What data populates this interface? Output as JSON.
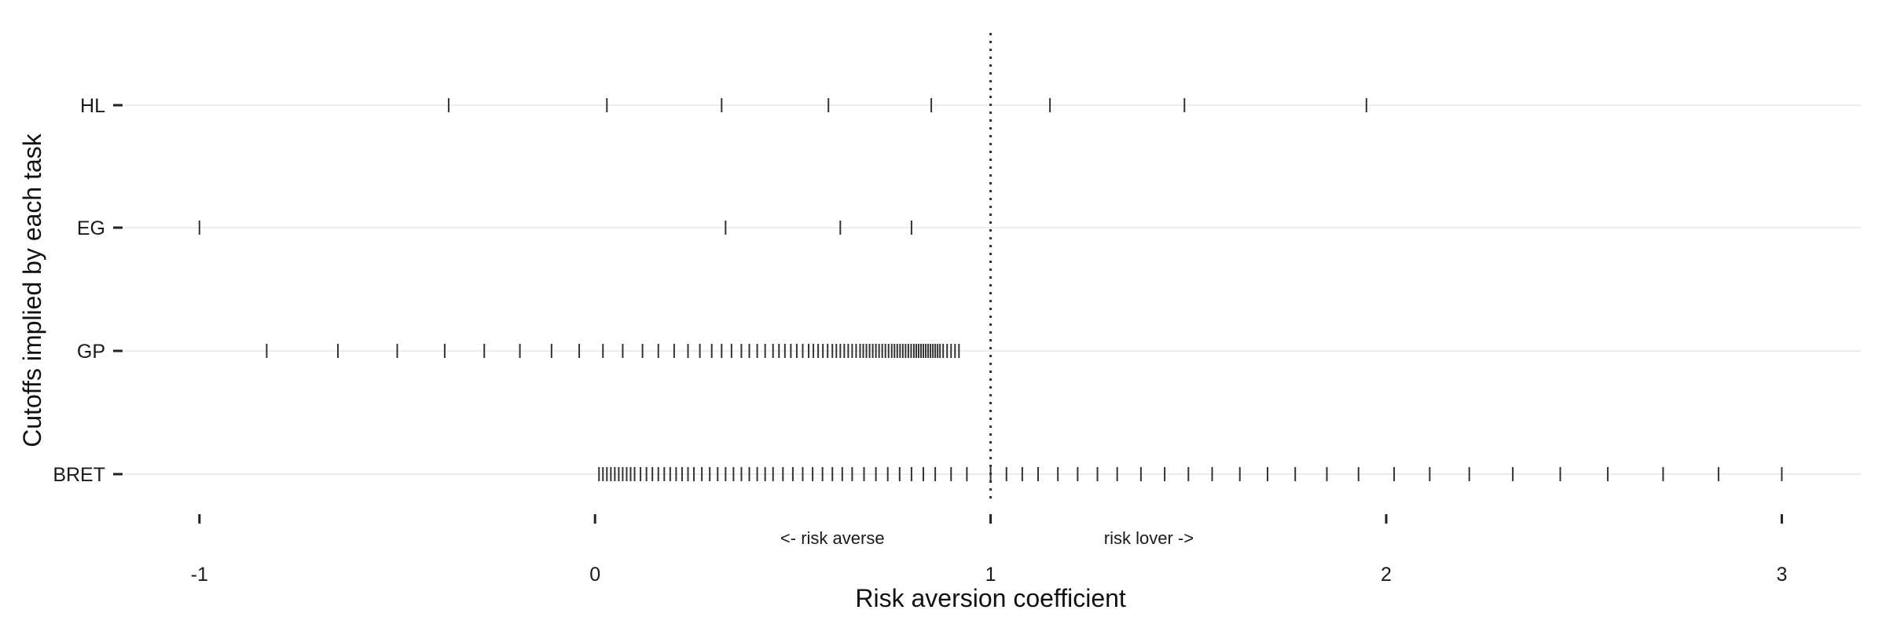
{
  "chart_data": {
    "type": "scatter",
    "marker": "vertical-tick",
    "xlabel": "Risk aversion coefficient",
    "ylabel": "Cutoffs implied by each task",
    "xlim": [
      -1.2,
      3.2
    ],
    "x_ticks": [
      -1,
      0,
      1,
      2,
      3
    ],
    "categories": [
      "HL",
      "EG",
      "GP",
      "BRET"
    ],
    "grid": "horizontal",
    "reference_line": {
      "x": 1,
      "style": "dotted"
    },
    "annotations": [
      {
        "text": "<- risk averse",
        "x": 0.6
      },
      {
        "text": "risk lover ->",
        "x": 1.4
      }
    ],
    "series": [
      {
        "name": "HL",
        "values": [
          -0.37,
          0.03,
          0.32,
          0.59,
          0.85,
          1.15,
          1.49,
          1.95
        ]
      },
      {
        "name": "EG",
        "values": [
          -1.0,
          0.33,
          0.62,
          0.8
        ]
      },
      {
        "name": "GP",
        "values": [
          -0.83,
          -0.65,
          -0.5,
          -0.38,
          -0.28,
          -0.19,
          -0.11,
          -0.04,
          0.02,
          0.07,
          0.12,
          0.16,
          0.2,
          0.235,
          0.265,
          0.295,
          0.32,
          0.345,
          0.37,
          0.39,
          0.41,
          0.43,
          0.45,
          0.465,
          0.48,
          0.495,
          0.51,
          0.525,
          0.54,
          0.552,
          0.564,
          0.576,
          0.588,
          0.6,
          0.61,
          0.62,
          0.63,
          0.64,
          0.65,
          0.66,
          0.67,
          0.678,
          0.686,
          0.694,
          0.702,
          0.71,
          0.718,
          0.726,
          0.734,
          0.742,
          0.75,
          0.757,
          0.764,
          0.771,
          0.778,
          0.785,
          0.792,
          0.799,
          0.806,
          0.812,
          0.818,
          0.824,
          0.83,
          0.836,
          0.842,
          0.848,
          0.854,
          0.86,
          0.866,
          0.872,
          0.88,
          0.89,
          0.9,
          0.91,
          0.92
        ]
      },
      {
        "name": "BRET",
        "values": [
          0.01,
          0.02,
          0.03,
          0.04,
          0.05,
          0.06,
          0.07,
          0.08,
          0.09,
          0.1,
          0.115,
          0.13,
          0.145,
          0.16,
          0.175,
          0.19,
          0.205,
          0.22,
          0.235,
          0.25,
          0.27,
          0.29,
          0.31,
          0.33,
          0.35,
          0.37,
          0.39,
          0.41,
          0.43,
          0.45,
          0.475,
          0.5,
          0.525,
          0.55,
          0.575,
          0.6,
          0.625,
          0.65,
          0.68,
          0.71,
          0.74,
          0.77,
          0.8,
          0.83,
          0.86,
          0.9,
          0.94,
          1.0,
          1.04,
          1.08,
          1.12,
          1.17,
          1.22,
          1.27,
          1.32,
          1.38,
          1.44,
          1.5,
          1.56,
          1.63,
          1.7,
          1.77,
          1.85,
          1.93,
          2.02,
          2.11,
          2.21,
          2.32,
          2.44,
          2.56,
          2.7,
          2.84,
          3.0
        ]
      }
    ]
  }
}
